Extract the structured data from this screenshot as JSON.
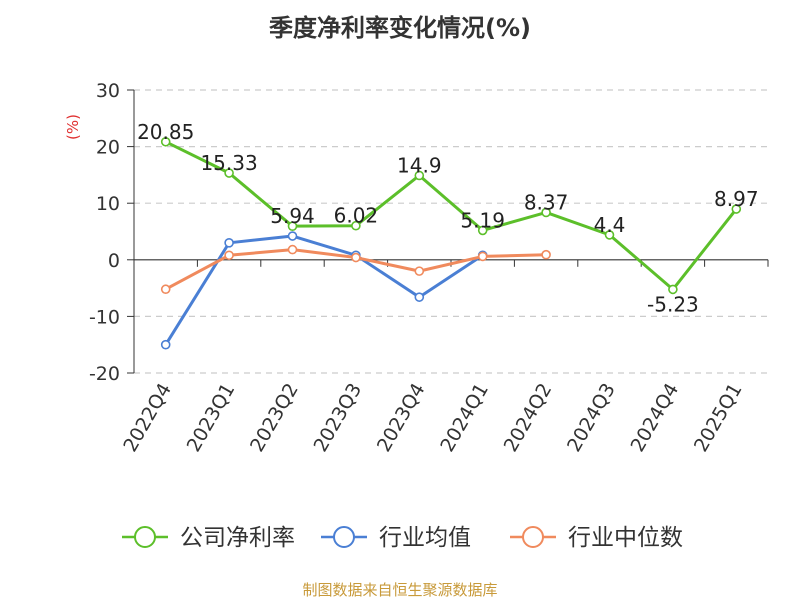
{
  "chart_data": {
    "type": "line",
    "title": "季度净利率变化情况(%)",
    "ylabel": "(%)",
    "xlabel": "",
    "ylim": [
      -20,
      30
    ],
    "yticks": [
      30,
      20,
      10,
      0,
      -10,
      -20
    ],
    "grid": true,
    "legend_position": "bottom",
    "categories": [
      "2022Q4",
      "2023Q1",
      "2023Q2",
      "2023Q3",
      "2023Q4",
      "2024Q1",
      "2024Q2",
      "2024Q3",
      "2024Q4",
      "2025Q1"
    ],
    "series": [
      {
        "name": "公司净利率",
        "color": "#5cbf2a",
        "values": [
          20.85,
          15.33,
          5.94,
          6.02,
          14.9,
          5.19,
          8.37,
          4.4,
          -5.23,
          8.97
        ],
        "labels": [
          "20.85",
          "15.33",
          "5.94",
          "6.02",
          "14.9",
          "5.19",
          "8.37",
          "4.4",
          "-5.23",
          "8.97"
        ]
      },
      {
        "name": "行业均值",
        "color": "#4a7fd4",
        "values": [
          -15,
          3,
          4.2,
          0.8,
          -6.6,
          0.8,
          null,
          null,
          null,
          null
        ]
      },
      {
        "name": "行业中位数",
        "color": "#f08a5d",
        "values": [
          -5.2,
          0.8,
          1.8,
          0.4,
          -2,
          0.6,
          0.9,
          null,
          null,
          null
        ]
      }
    ]
  },
  "colors": {
    "title": "#333333",
    "ylabel": "#e03030",
    "source": "#c89a3a",
    "axis": "#333333",
    "grid": "#cccccc"
  },
  "source_note": "制图数据来自恒生聚源数据库"
}
